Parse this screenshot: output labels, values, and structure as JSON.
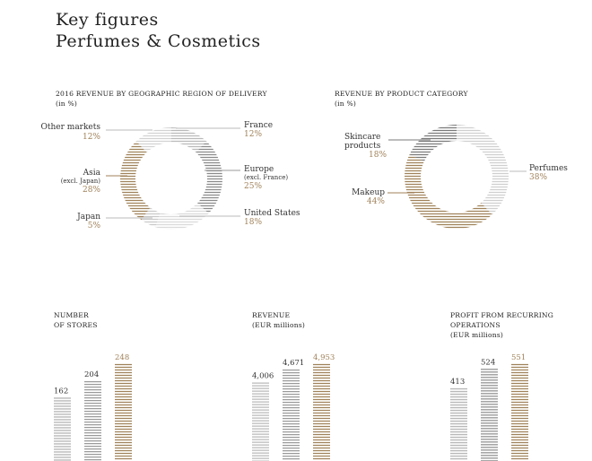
{
  "title_line1": "Key figures",
  "title_line2": "Perfumes & Cosmetics",
  "colors": {
    "gold": "#a0825a",
    "gray": "#7a7a7a",
    "light": "#cfcfcf"
  },
  "chart_data": [
    {
      "type": "pie",
      "title_line1": "2016 REVENUE BY GEOGRAPHIC REGION OF DELIVERY",
      "title_line2": "(in %)",
      "slices": [
        {
          "label": "France",
          "sub": "",
          "value": 12,
          "display": "12%"
        },
        {
          "label": "Europe",
          "sub": "(excl. France)",
          "value": 25,
          "display": "25%"
        },
        {
          "label": "United States",
          "sub": "",
          "value": 18,
          "display": "18%"
        },
        {
          "label": "Japan",
          "sub": "",
          "value": 5,
          "display": "5%"
        },
        {
          "label": "Asia",
          "sub": "(excl. Japan)",
          "value": 28,
          "display": "28%"
        },
        {
          "label": "Other markets",
          "sub": "",
          "value": 12,
          "display": "12%"
        }
      ]
    },
    {
      "type": "pie",
      "title_line1": "REVENUE BY PRODUCT CATEGORY",
      "title_line2": "(in %)",
      "slices": [
        {
          "label": "Perfumes",
          "value": 38,
          "display": "38%"
        },
        {
          "label": "Makeup",
          "value": 44,
          "display": "44%"
        },
        {
          "label": "Skincare products",
          "value": 18,
          "display": "18%"
        }
      ]
    },
    {
      "type": "bar",
      "title_line1": "NUMBER",
      "title_line2": "OF STORES",
      "title_line3": "",
      "values": [
        162,
        204,
        248
      ],
      "labels": [
        "162",
        "204",
        "248"
      ]
    },
    {
      "type": "bar",
      "title_line1": "REVENUE",
      "title_line2": "(EUR millions)",
      "title_line3": "",
      "values": [
        4006,
        4671,
        4953
      ],
      "labels": [
        "4,006",
        "4,671",
        "4,953"
      ]
    },
    {
      "type": "bar",
      "title_line1": "PROFIT FROM RECURRING",
      "title_line2": "OPERATIONS",
      "title_line3": "(EUR millions)",
      "values": [
        413,
        524,
        551
      ],
      "labels": [
        "413",
        "524",
        "551"
      ]
    }
  ]
}
